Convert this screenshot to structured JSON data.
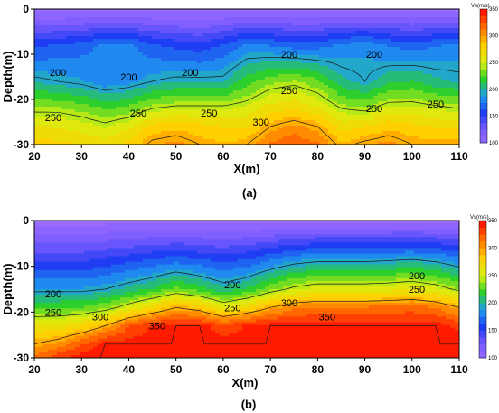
{
  "chart_data": [
    {
      "type": "heatmap",
      "panel_label": "(a)",
      "xlabel": "X(m)",
      "ylabel": "Depth(m)",
      "xlim": [
        20,
        110
      ],
      "ylim": [
        -30,
        0
      ],
      "x_ticks": [
        20,
        30,
        40,
        50,
        60,
        70,
        80,
        90,
        100,
        110
      ],
      "y_ticks": [
        0,
        -10,
        -20,
        -30
      ],
      "colorbar": {
        "title": "Vs(m/s)",
        "range": [
          100,
          350
        ],
        "ticks": [
          350,
          300,
          250,
          200,
          150,
          100
        ],
        "colors": [
          "#9b6bff",
          "#7a5cff",
          "#1f3df2",
          "#1f9cf0",
          "#2ccf2c",
          "#d8ef10",
          "#ffd000",
          "#ff7a00",
          "#ff1a00"
        ]
      },
      "x": [
        20,
        25,
        30,
        35,
        40,
        45,
        50,
        55,
        60,
        65,
        70,
        75,
        80,
        85,
        90,
        95,
        100,
        105,
        110
      ],
      "depths": [
        0,
        -8,
        -16,
        -22,
        -26,
        -30
      ],
      "values": [
        [
          100,
          100,
          100,
          100,
          100,
          100,
          100,
          100,
          100,
          100,
          100,
          100,
          100,
          100,
          100,
          100,
          100,
          100,
          100
        ],
        [
          165,
          170,
          175,
          185,
          185,
          170,
          165,
          160,
          170,
          185,
          180,
          175,
          175,
          185,
          190,
          180,
          175,
          180,
          185
        ],
        [
          205,
          200,
          195,
          185,
          190,
          200,
          205,
          205,
          205,
          225,
          240,
          245,
          235,
          210,
          200,
          215,
          220,
          210,
          205
        ],
        [
          245,
          245,
          240,
          230,
          235,
          250,
          255,
          255,
          255,
          260,
          275,
          280,
          270,
          250,
          245,
          260,
          260,
          255,
          250
        ],
        [
          270,
          268,
          262,
          255,
          265,
          285,
          290,
          285,
          280,
          280,
          300,
          310,
          300,
          275,
          280,
          290,
          285,
          280,
          280
        ],
        [
          285,
          285,
          280,
          275,
          285,
          305,
          310,
          300,
          295,
          300,
          320,
          330,
          320,
          295,
          305,
          310,
          300,
          300,
          300
        ]
      ],
      "contour_labels": [
        {
          "text": "200",
          "x": 25,
          "depth": -14
        },
        {
          "text": "200",
          "x": 40,
          "depth": -15
        },
        {
          "text": "200",
          "x": 53,
          "depth": -14
        },
        {
          "text": "200",
          "x": 74,
          "depth": -10
        },
        {
          "text": "200",
          "x": 92,
          "depth": -10
        },
        {
          "text": "250",
          "x": 74,
          "depth": -18
        },
        {
          "text": "250",
          "x": 24,
          "depth": -24
        },
        {
          "text": "250",
          "x": 42,
          "depth": -23
        },
        {
          "text": "250",
          "x": 57,
          "depth": -23
        },
        {
          "text": "250",
          "x": 92,
          "depth": -22
        },
        {
          "text": "250",
          "x": 105,
          "depth": -21
        },
        {
          "text": "300",
          "x": 68,
          "depth": -25
        }
      ]
    },
    {
      "type": "heatmap",
      "panel_label": "(b)",
      "xlabel": "X(m)",
      "ylabel": "Depth(m)",
      "xlim": [
        20,
        110
      ],
      "ylim": [
        -30,
        0
      ],
      "x_ticks": [
        20,
        30,
        40,
        50,
        60,
        70,
        80,
        90,
        100,
        110
      ],
      "y_ticks": [
        0,
        -10,
        -20,
        -30
      ],
      "colorbar": {
        "title": "Vs(m/s)",
        "range": [
          100,
          350
        ],
        "ticks": [
          350,
          300,
          250,
          200,
          150,
          100
        ],
        "colors": [
          "#9b6bff",
          "#7a5cff",
          "#1f3df2",
          "#1f9cf0",
          "#2ccf2c",
          "#d8ef10",
          "#ffd000",
          "#ff7a00",
          "#ff1a00"
        ]
      },
      "x": [
        20,
        25,
        30,
        35,
        40,
        45,
        50,
        55,
        60,
        65,
        70,
        75,
        80,
        85,
        90,
        95,
        100,
        105,
        110
      ],
      "depths": [
        0,
        -8,
        -15,
        -19,
        -23,
        -27,
        -30
      ],
      "values": [
        [
          100,
          100,
          100,
          100,
          100,
          100,
          100,
          100,
          100,
          100,
          100,
          100,
          100,
          100,
          100,
          100,
          100,
          100,
          100
        ],
        [
          150,
          150,
          150,
          155,
          160,
          165,
          170,
          165,
          160,
          165,
          175,
          185,
          190,
          190,
          190,
          192,
          195,
          190,
          180
        ],
        [
          195,
          195,
          195,
          200,
          210,
          220,
          235,
          225,
          210,
          220,
          240,
          255,
          262,
          262,
          262,
          264,
          268,
          260,
          245
        ],
        [
          230,
          230,
          232,
          240,
          260,
          280,
          300,
          290,
          265,
          280,
          300,
          315,
          320,
          320,
          320,
          322,
          325,
          318,
          300
        ],
        [
          270,
          272,
          280,
          300,
          330,
          345,
          350,
          350,
          335,
          345,
          350,
          350,
          350,
          350,
          350,
          350,
          350,
          350,
          340
        ],
        [
          300,
          310,
          330,
          350,
          350,
          350,
          350,
          350,
          350,
          350,
          350,
          350,
          350,
          350,
          350,
          350,
          350,
          350,
          350
        ],
        [
          320,
          340,
          350,
          350,
          350,
          350,
          350,
          350,
          350,
          350,
          350,
          350,
          350,
          350,
          350,
          350,
          350,
          350,
          350
        ]
      ],
      "contour_labels": [
        {
          "text": "200",
          "x": 24,
          "depth": -16
        },
        {
          "text": "250",
          "x": 24,
          "depth": -20
        },
        {
          "text": "300",
          "x": 34,
          "depth": -21
        },
        {
          "text": "350",
          "x": 46,
          "depth": -23
        },
        {
          "text": "200",
          "x": 62,
          "depth": -14
        },
        {
          "text": "250",
          "x": 62,
          "depth": -19
        },
        {
          "text": "300",
          "x": 74,
          "depth": -18
        },
        {
          "text": "200",
          "x": 101,
          "depth": -12
        },
        {
          "text": "250",
          "x": 101,
          "depth": -15
        },
        {
          "text": "350",
          "x": 82,
          "depth": -21
        }
      ]
    }
  ]
}
